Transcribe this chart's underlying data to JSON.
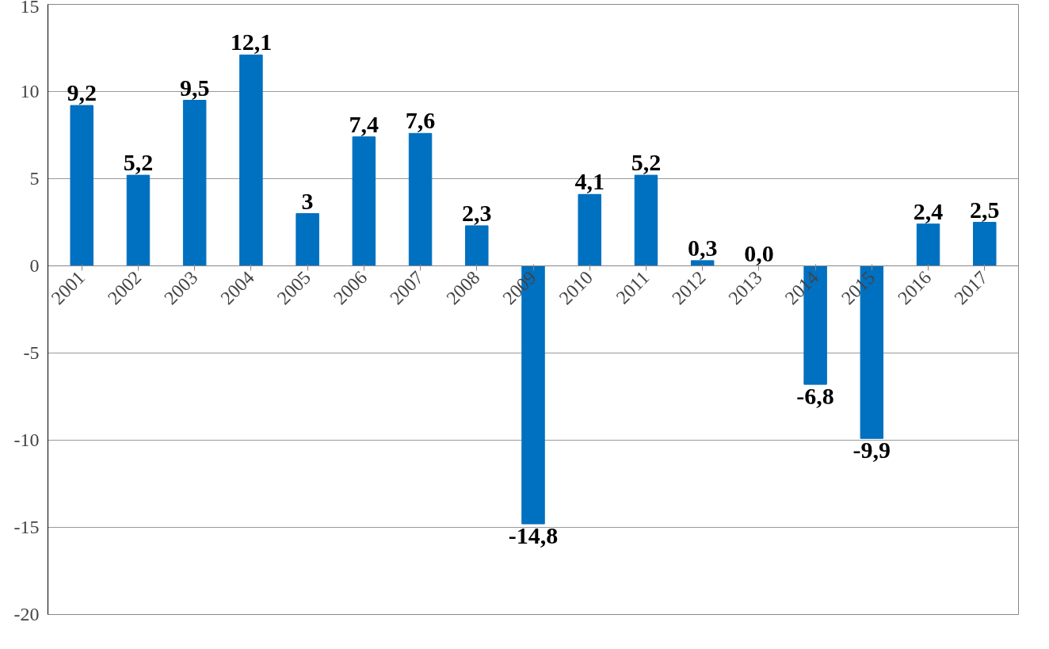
{
  "chart_data": {
    "type": "bar",
    "categories": [
      "2001",
      "2002",
      "2003",
      "2004",
      "2005",
      "2006",
      "2007",
      "2008",
      "2009",
      "2010",
      "2011",
      "2012",
      "2013",
      "2014",
      "2015",
      "2016",
      "2017"
    ],
    "values": [
      9.2,
      5.2,
      9.5,
      12.1,
      3,
      7.4,
      7.6,
      2.3,
      -14.8,
      4.1,
      5.2,
      0.3,
      0.0,
      -6.8,
      -9.9,
      2.4,
      2.5
    ],
    "value_labels": [
      "9,2",
      "5,2",
      "9,5",
      "12,1",
      "3",
      "7,4",
      "7,6",
      "2,3",
      "-14,8",
      "4,1",
      "5,2",
      "0,3",
      "0,0",
      "-6,8",
      "-9,9",
      "2,4",
      "2,5"
    ],
    "color": "#0070c0",
    "ylim": [
      -20,
      15
    ],
    "yticks": [
      15,
      10,
      5,
      0,
      -5,
      -10,
      -15,
      -20
    ],
    "grid": "y"
  }
}
